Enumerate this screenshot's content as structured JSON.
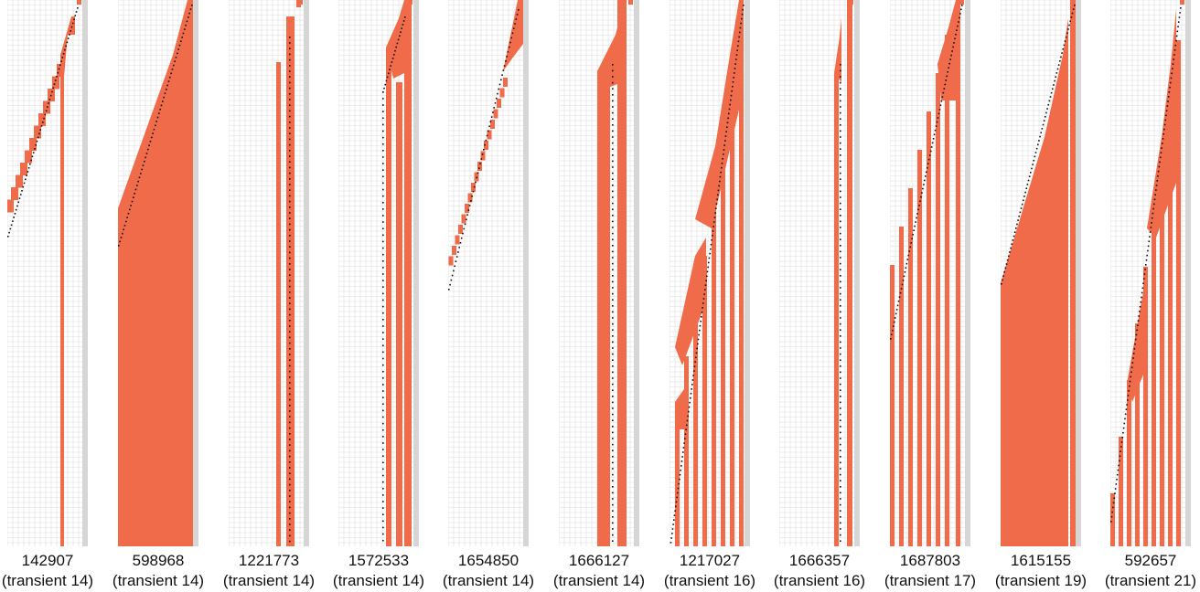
{
  "colors": {
    "cell": "#ef6b4a",
    "grid": "#dedede",
    "edge": "#d6d6d6",
    "path": "#111111"
  },
  "panels": [
    {
      "id": "142907",
      "transient": "(transient 14)",
      "pattern": "diag-stair"
    },
    {
      "id": "598968",
      "transient": "(transient 14)",
      "pattern": "diag-fill"
    },
    {
      "id": "1221773",
      "transient": "(transient 14)",
      "pattern": "double-stripe"
    },
    {
      "id": "1572533",
      "transient": "(transient 14)",
      "pattern": "triple-stripe"
    },
    {
      "id": "1654850",
      "transient": "(transient 14)",
      "pattern": "diag-sparse"
    },
    {
      "id": "1666127",
      "transient": "(transient 14)",
      "pattern": "wide-stripe"
    },
    {
      "id": "1217027",
      "transient": "(transient 16)",
      "pattern": "multi-stripe"
    },
    {
      "id": "1666357",
      "transient": "(transient 16)",
      "pattern": "split-stripe"
    },
    {
      "id": "1687803",
      "transient": "(transient 17)",
      "pattern": "comb"
    },
    {
      "id": "1615155",
      "transient": "(transient 19)",
      "pattern": "diag-fill-gap"
    },
    {
      "id": "592657",
      "transient": "(transient 21)",
      "pattern": "zigzag-comb"
    }
  ]
}
